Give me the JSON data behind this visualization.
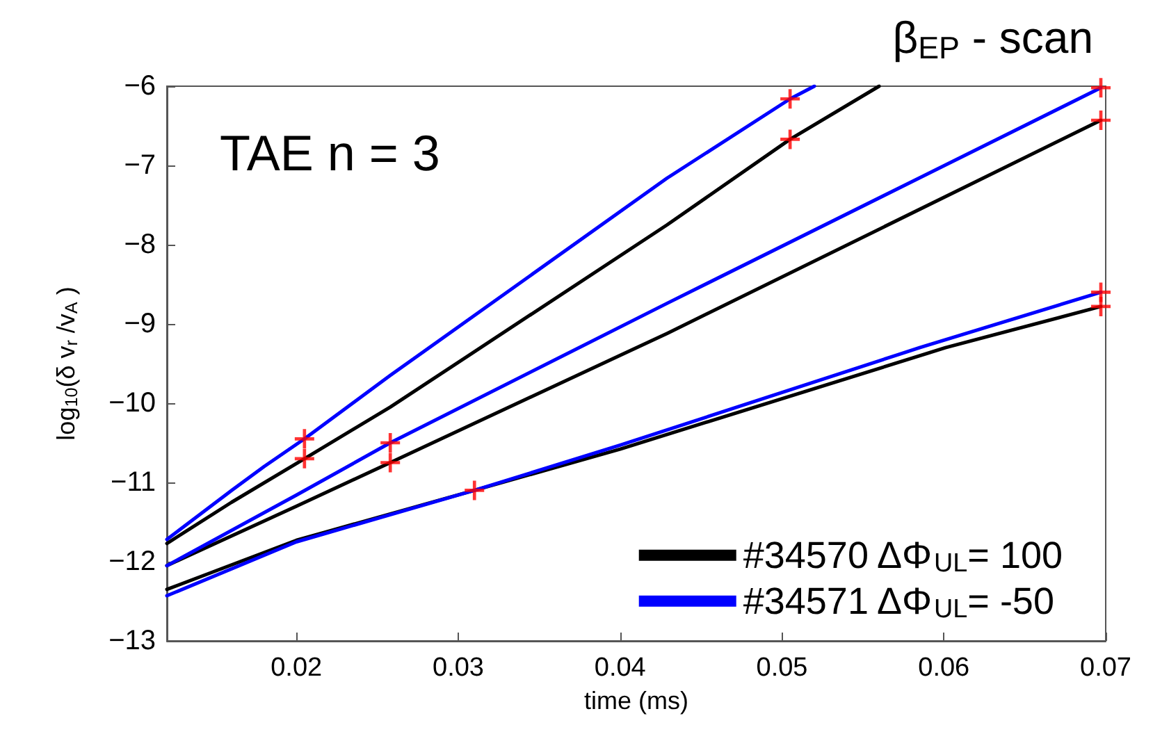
{
  "chart_data": {
    "type": "line",
    "title": "β$_{EP}$ - scan",
    "xlabel": "time (ms)",
    "ylabel": "log$_{10}$(δ v$_{r}$ /v$_{A}$ )",
    "annotations": [
      "TAE n = 3"
    ],
    "xlim": [
      0.012,
      0.07
    ],
    "xticks": [
      0.02,
      0.03,
      0.04,
      0.05,
      0.06,
      0.07
    ],
    "ylim": [
      -13,
      -6
    ],
    "yticks": [
      -13,
      -12,
      -11,
      -10,
      -9,
      -8,
      -7,
      -6
    ],
    "grid": false,
    "legend": "bottom right",
    "marker": "none",
    "series": [
      {
        "name": "#34570 ΔΦ$_{UL}$= 100",
        "color": "#000000",
        "x": [
          0.012,
          0.016,
          0.0205,
          0.0258,
          0.0429,
          0.0505,
          0.056
        ],
        "values": [
          -11.77,
          -11.25,
          -10.7,
          -10.05,
          -7.75,
          -6.67,
          -6.0
        ]
      },
      {
        "name": "#34571 ΔΦ$_{UL}$= -50",
        "color": "#0000ff",
        "x": [
          0.012,
          0.016,
          0.018,
          0.0205,
          0.0258,
          0.0429,
          0.0505,
          0.052
        ],
        "values": [
          -11.72,
          -11.1,
          -10.8,
          -10.45,
          -9.65,
          -7.16,
          -6.16,
          -6.0
        ]
      },
      {
        "color": "#000000",
        "x": [
          0.012,
          0.02,
          0.0258,
          0.0429,
          0.0697
        ],
        "values": [
          -12.05,
          -11.3,
          -10.75,
          -9.12,
          -6.43
        ]
      },
      {
        "color": "#0000ff",
        "x": [
          0.012,
          0.02,
          0.0258,
          0.0429,
          0.0697
        ],
        "values": [
          -12.05,
          -11.16,
          -10.5,
          -8.74,
          -6.02
        ]
      },
      {
        "color": "#000000",
        "x": [
          0.012,
          0.02,
          0.031,
          0.04,
          0.0601,
          0.0697
        ],
        "values": [
          -12.35,
          -11.73,
          -11.1,
          -10.58,
          -9.3,
          -8.78
        ]
      },
      {
        "color": "#0000ff",
        "x": [
          0.012,
          0.02,
          0.031,
          0.04,
          0.0585,
          0.0697
        ],
        "values": [
          -12.43,
          -11.75,
          -11.1,
          -10.53,
          -9.3,
          -8.6
        ]
      },
      {
        "type": "scatter",
        "marker": "cross",
        "color": "#ff0000",
        "x": [
          0.0205,
          0.0205,
          0.0258,
          0.0258,
          0.031,
          0.0505,
          0.0505,
          0.0697,
          0.0697,
          0.0697,
          0.0697
        ],
        "values": [
          -10.45,
          -10.7,
          -10.5,
          -10.75,
          -11.1,
          -6.16,
          -6.67,
          -6.02,
          -6.43,
          -8.6,
          -8.78
        ]
      }
    ]
  }
}
